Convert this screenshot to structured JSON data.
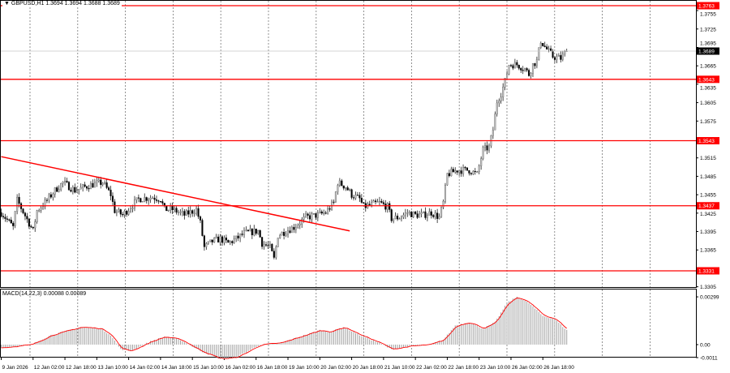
{
  "header": {
    "symbol": "GBPUSD,H1",
    "ohlc": "1.3694 1.3694 1.3688 1.3689",
    "collapse_icon": "triangle-down-icon"
  },
  "macd_label": "MACD(14,22,3) 0.00088 0.00089",
  "colors": {
    "level": "#ff0000",
    "trendline": "#ff0000",
    "current_price": "#000000",
    "grid": "#777777",
    "macd_hist": "#a0a0a0",
    "macd_signal": "#ff0000"
  },
  "chart_data": [
    {
      "type": "candlestick",
      "title": "",
      "symbol": "GBPUSD",
      "timeframe": "H1",
      "ylim": [
        1.3305,
        1.3763
      ],
      "y_ticks": [
        "1.3755",
        "1.3725",
        "1.3695",
        "1.3665",
        "1.3635",
        "1.3605",
        "1.3575",
        "1.3515",
        "1.3485",
        "1.3455",
        "1.3425",
        "1.3395",
        "1.3365",
        "1.3305"
      ],
      "x_ticks": [
        "9 Jan 2026",
        "12 Jan 02:00",
        "12 Jan 18:00",
        "13 Jan 10:00",
        "14 Jan 02:00",
        "14 Jan 18:00",
        "15 Jan 10:00",
        "16 Jan 02:00",
        "16 Jan 18:00",
        "19 Jan 10:00",
        "20 Jan 02:00",
        "20 Jan 18:00",
        "21 Jan 10:00",
        "22 Jan 02:00",
        "22 Jan 18:00",
        "23 Jan 10:00",
        "26 Jan 02:00",
        "26 Jan 18:00"
      ],
      "bars_per_x_tick": 16,
      "bar_count": 285,
      "close_path": [
        [
          0,
          1.3426
        ],
        [
          6,
          1.3402
        ],
        [
          8,
          1.3446
        ],
        [
          16,
          1.3396
        ],
        [
          18,
          1.3429
        ],
        [
          22,
          1.3442
        ],
        [
          27,
          1.3462
        ],
        [
          31,
          1.3475
        ],
        [
          37,
          1.3462
        ],
        [
          45,
          1.3471
        ],
        [
          51,
          1.3475
        ],
        [
          55,
          1.3455
        ],
        [
          57,
          1.3429
        ],
        [
          61,
          1.3422
        ],
        [
          65,
          1.3435
        ],
        [
          69,
          1.3448
        ],
        [
          76,
          1.3451
        ],
        [
          80,
          1.3448
        ],
        [
          82,
          1.3431
        ],
        [
          86,
          1.3431
        ],
        [
          92,
          1.3422
        ],
        [
          98,
          1.3431
        ],
        [
          100,
          1.3409
        ],
        [
          102,
          1.3369
        ],
        [
          106,
          1.3379
        ],
        [
          110,
          1.3383
        ],
        [
          114,
          1.3376
        ],
        [
          118,
          1.3383
        ],
        [
          122,
          1.3392
        ],
        [
          129,
          1.3396
        ],
        [
          131,
          1.3376
        ],
        [
          135,
          1.3369
        ],
        [
          137,
          1.335
        ],
        [
          139,
          1.3389
        ],
        [
          143,
          1.3396
        ],
        [
          147,
          1.3402
        ],
        [
          153,
          1.3418
        ],
        [
          159,
          1.3422
        ],
        [
          163,
          1.3426
        ],
        [
          167,
          1.3442
        ],
        [
          169,
          1.3475
        ],
        [
          173,
          1.3468
        ],
        [
          176,
          1.3455
        ],
        [
          180,
          1.3448
        ],
        [
          182,
          1.3435
        ],
        [
          186,
          1.3439
        ],
        [
          190,
          1.3442
        ],
        [
          194,
          1.3435
        ],
        [
          196,
          1.3416
        ],
        [
          200,
          1.3418
        ],
        [
          204,
          1.3426
        ],
        [
          208,
          1.3422
        ],
        [
          212,
          1.3422
        ],
        [
          216,
          1.3426
        ],
        [
          220,
          1.3418
        ],
        [
          222,
          1.3442
        ],
        [
          224,
          1.3488
        ],
        [
          229,
          1.3495
        ],
        [
          235,
          1.3495
        ],
        [
          239,
          1.3488
        ],
        [
          242,
          1.3528
        ],
        [
          245,
          1.3532
        ],
        [
          247,
          1.3561
        ],
        [
          249,
          1.3607
        ],
        [
          251,
          1.362
        ],
        [
          253,
          1.364
        ],
        [
          255,
          1.3667
        ],
        [
          259,
          1.3667
        ],
        [
          263,
          1.366
        ],
        [
          265,
          1.3651
        ],
        [
          267,
          1.3667
        ],
        [
          269,
          1.3673
        ],
        [
          271,
          1.3706
        ],
        [
          273,
          1.3696
        ],
        [
          277,
          1.368
        ],
        [
          281,
          1.3677
        ],
        [
          284,
          1.3689
        ]
      ],
      "current_price": "1.3689",
      "levels": [
        "1.3763",
        "1.3643",
        "1.3543",
        "1.3437",
        "1.3331"
      ],
      "trendline": {
        "start": [
          0,
          1.3517
        ],
        "end": [
          175,
          1.3396
        ]
      }
    },
    {
      "type": "bar+line",
      "title": "MACD(14,22,3)",
      "ylim": [
        -0.0011,
        0.00299
      ],
      "y_ticks": [
        "0.00299",
        "0.00",
        "-0.0011"
      ],
      "macd_path": [
        [
          0,
          -0.0002
        ],
        [
          15,
          0.0
        ],
        [
          25,
          0.0006
        ],
        [
          40,
          0.0011
        ],
        [
          50,
          0.001
        ],
        [
          55,
          0.0006
        ],
        [
          60,
          -0.0003
        ],
        [
          65,
          -0.0004
        ],
        [
          75,
          0.0002
        ],
        [
          82,
          0.0005
        ],
        [
          90,
          0.0003
        ],
        [
          100,
          -0.0004
        ],
        [
          110,
          -0.0009
        ],
        [
          118,
          -0.0008
        ],
        [
          130,
          0.0
        ],
        [
          140,
          0.0001
        ],
        [
          150,
          0.0005
        ],
        [
          160,
          0.0009
        ],
        [
          165,
          0.0008
        ],
        [
          172,
          0.0011
        ],
        [
          180,
          0.0006
        ],
        [
          190,
          0.0001
        ],
        [
          196,
          -0.0003
        ],
        [
          205,
          -0.0001
        ],
        [
          215,
          0.0
        ],
        [
          222,
          0.0003
        ],
        [
          228,
          0.0012
        ],
        [
          235,
          0.0014
        ],
        [
          242,
          0.001
        ],
        [
          248,
          0.0014
        ],
        [
          254,
          0.0026
        ],
        [
          259,
          0.003
        ],
        [
          265,
          0.0026
        ],
        [
          272,
          0.0018
        ],
        [
          278,
          0.0016
        ],
        [
          284,
          0.0009
        ]
      ]
    }
  ]
}
